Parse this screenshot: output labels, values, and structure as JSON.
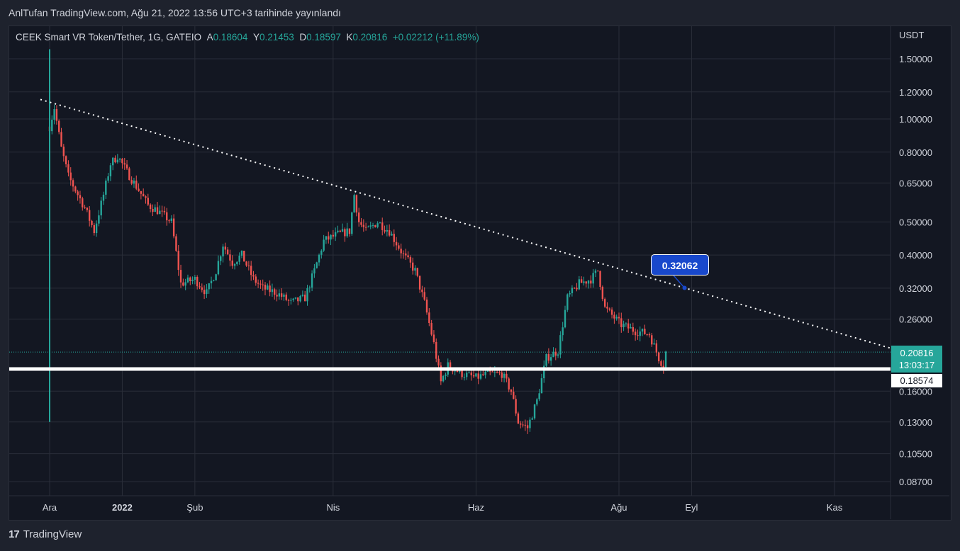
{
  "header": {
    "text": "AnlTufan TradingView.com, Ağu 21, 2022 13:56 UTC+3 tarihinde yayınlandı"
  },
  "legend": {
    "symbol": "CEEK Smart VR Token/Tether, 1G, GATEIO",
    "open_label": "A",
    "open_value": "0.18604",
    "high_label": "Y",
    "high_value": "0.21453",
    "low_label": "D",
    "low_value": "0.18597",
    "close_label": "K",
    "close_value": "0.20816",
    "change": "+0.02212 (+11.89%)"
  },
  "price_badge": {
    "price": "0.20816",
    "countdown": "13:03:17"
  },
  "support_badge": {
    "price": "0.18574"
  },
  "callout": {
    "value": "0.32062"
  },
  "footer": {
    "brand": "TradingView"
  },
  "colors": {
    "up": "#26a69a",
    "down": "#ef5350",
    "background": "#131722",
    "grid": "#2a2e39",
    "text": "#d1d4dc",
    "callout": "#1848cc"
  },
  "chart_data": {
    "type": "candlestick",
    "y_axis_unit": "USDT",
    "y_scale": "log",
    "y_ticks": [
      "1.50000",
      "1.20000",
      "1.00000",
      "0.80000",
      "0.65000",
      "0.50000",
      "0.40000",
      "0.32000",
      "0.26000",
      "0.16000",
      "0.13000",
      "0.10500",
      "0.08700"
    ],
    "x_ticks": [
      "Ara",
      "2022",
      "Şub",
      "Nis",
      "Haz",
      "Ağu",
      "Eyl",
      "Kas"
    ],
    "grid": true,
    "trendline": {
      "style": "dotted",
      "color": "#ffffff",
      "points": [
        [
          "2021-12-01",
          1.12
        ],
        [
          "2022-08-29",
          0.32062
        ]
      ]
    },
    "support_line": {
      "price": 0.18574,
      "color": "#ffffff"
    },
    "last_price": 0.20816,
    "price_path": [
      [
        "2021-12-01",
        0.95
      ],
      [
        "2021-12-03",
        1.08
      ],
      [
        "2021-12-06",
        0.82
      ],
      [
        "2021-12-09",
        0.68
      ],
      [
        "2021-12-12",
        0.62
      ],
      [
        "2021-12-16",
        0.55
      ],
      [
        "2021-12-20",
        0.47
      ],
      [
        "2021-12-24",
        0.6
      ],
      [
        "2021-12-27",
        0.74
      ],
      [
        "2021-12-30",
        0.78
      ],
      [
        "2022-01-03",
        0.7
      ],
      [
        "2022-01-08",
        0.62
      ],
      [
        "2022-01-12",
        0.56
      ],
      [
        "2022-01-16",
        0.54
      ],
      [
        "2022-01-22",
        0.5
      ],
      [
        "2022-01-26",
        0.33
      ],
      [
        "2022-02-01",
        0.34
      ],
      [
        "2022-02-06",
        0.31
      ],
      [
        "2022-02-10",
        0.36
      ],
      [
        "2022-02-13",
        0.43
      ],
      [
        "2022-02-17",
        0.38
      ],
      [
        "2022-02-21",
        0.4
      ],
      [
        "2022-02-26",
        0.34
      ],
      [
        "2022-03-02",
        0.32
      ],
      [
        "2022-03-08",
        0.31
      ],
      [
        "2022-03-14",
        0.29
      ],
      [
        "2022-03-20",
        0.3
      ],
      [
        "2022-03-24",
        0.36
      ],
      [
        "2022-03-28",
        0.44
      ],
      [
        "2022-04-03",
        0.46
      ],
      [
        "2022-04-08",
        0.47
      ],
      [
        "2022-04-10",
        0.6
      ],
      [
        "2022-04-12",
        0.5
      ],
      [
        "2022-04-15",
        0.47
      ],
      [
        "2022-04-20",
        0.5
      ],
      [
        "2022-04-25",
        0.47
      ],
      [
        "2022-05-01",
        0.4
      ],
      [
        "2022-05-06",
        0.36
      ],
      [
        "2022-05-10",
        0.29
      ],
      [
        "2022-05-14",
        0.22
      ],
      [
        "2022-05-17",
        0.17
      ],
      [
        "2022-05-20",
        0.19
      ],
      [
        "2022-05-26",
        0.18
      ],
      [
        "2022-06-01",
        0.175
      ],
      [
        "2022-06-06",
        0.18
      ],
      [
        "2022-06-12",
        0.18
      ],
      [
        "2022-06-16",
        0.16
      ],
      [
        "2022-06-19",
        0.13
      ],
      [
        "2022-06-23",
        0.125
      ],
      [
        "2022-06-27",
        0.15
      ],
      [
        "2022-07-01",
        0.2
      ],
      [
        "2022-07-06",
        0.21
      ],
      [
        "2022-07-10",
        0.3
      ],
      [
        "2022-07-15",
        0.33
      ],
      [
        "2022-07-20",
        0.34
      ],
      [
        "2022-07-23",
        0.36
      ],
      [
        "2022-07-26",
        0.28
      ],
      [
        "2022-08-02",
        0.25
      ],
      [
        "2022-08-08",
        0.24
      ],
      [
        "2022-08-14",
        0.235
      ],
      [
        "2022-08-18",
        0.2
      ],
      [
        "2022-08-20",
        0.19
      ],
      [
        "2022-08-21",
        0.208
      ]
    ]
  }
}
